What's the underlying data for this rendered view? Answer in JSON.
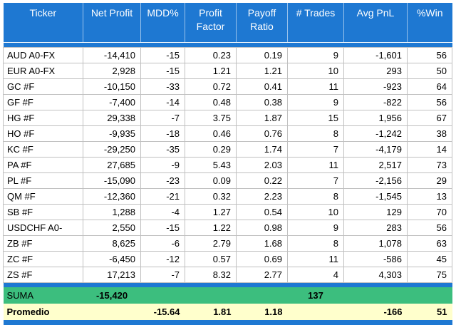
{
  "table": {
    "headers": [
      "Ticker",
      "Net Profit",
      "MDD%",
      "Profit Factor",
      "Payoff Ratio",
      "# Trades",
      "Avg PnL",
      "%Win"
    ],
    "rows": [
      [
        "AUD A0-FX",
        "-14,410",
        "-15",
        "0.23",
        "0.19",
        "9",
        "-1,601",
        "56"
      ],
      [
        "EUR A0-FX",
        "2,928",
        "-15",
        "1.21",
        "1.21",
        "10",
        "293",
        "50"
      ],
      [
        "GC #F",
        "-10,150",
        "-33",
        "0.72",
        "0.41",
        "11",
        "-923",
        "64"
      ],
      [
        "GF #F",
        "-7,400",
        "-14",
        "0.48",
        "0.38",
        "9",
        "-822",
        "56"
      ],
      [
        "HG #F",
        "29,338",
        "-7",
        "3.75",
        "1.87",
        "15",
        "1,956",
        "67"
      ],
      [
        "HO #F",
        "-9,935",
        "-18",
        "0.46",
        "0.76",
        "8",
        "-1,242",
        "38"
      ],
      [
        "KC #F",
        "-29,250",
        "-35",
        "0.29",
        "1.74",
        "7",
        "-4,179",
        "14"
      ],
      [
        "PA #F",
        "27,685",
        "-9",
        "5.43",
        "2.03",
        "11",
        "2,517",
        "73"
      ],
      [
        "PL #F",
        "-15,090",
        "-23",
        "0.09",
        "0.22",
        "7",
        "-2,156",
        "29"
      ],
      [
        "QM #F",
        "-12,360",
        "-21",
        "0.32",
        "2.23",
        "8",
        "-1,545",
        "13"
      ],
      [
        "SB #F",
        "1,288",
        "-4",
        "1.27",
        "0.54",
        "10",
        "129",
        "70"
      ],
      [
        "USDCHF A0-",
        "2,550",
        "-15",
        "1.22",
        "0.98",
        "9",
        "283",
        "56"
      ],
      [
        "ZB #F",
        "8,625",
        "-6",
        "2.79",
        "1.68",
        "8",
        "1,078",
        "63"
      ],
      [
        "ZC #F",
        "-6,450",
        "-12",
        "0.57",
        "0.69",
        "11",
        "-586",
        "45"
      ],
      [
        "ZS #F",
        "17,213",
        "-7",
        "8.32",
        "2.77",
        "4",
        "4,303",
        "75"
      ]
    ],
    "suma": {
      "label": "SUMA",
      "net_profit": "-15,420",
      "trades": "137"
    },
    "promedio": {
      "label": "Promedio",
      "mdd": "-15.64",
      "profit_factor": "1.81",
      "payoff_ratio": "1.18",
      "avg_pnl": "-166",
      "win": "51"
    }
  },
  "colors": {
    "header_blue": "#1E78D2",
    "suma_green": "#3CBE7E",
    "promedio_yellow": "#FFFFCC",
    "gridline_gray": "#C0C0C0",
    "header_text": "#FFFFFF"
  },
  "chart_data": {
    "type": "table",
    "title": "Strategy performance by ticker",
    "columns": [
      "Ticker",
      "Net Profit",
      "MDD%",
      "Profit Factor",
      "Payoff Ratio",
      "# Trades",
      "Avg PnL",
      "%Win"
    ],
    "rows": [
      [
        "AUD A0-FX",
        -14410,
        -15,
        0.23,
        0.19,
        9,
        -1601,
        56
      ],
      [
        "EUR A0-FX",
        2928,
        -15,
        1.21,
        1.21,
        10,
        293,
        50
      ],
      [
        "GC #F",
        -10150,
        -33,
        0.72,
        0.41,
        11,
        -923,
        64
      ],
      [
        "GF #F",
        -7400,
        -14,
        0.48,
        0.38,
        9,
        -822,
        56
      ],
      [
        "HG #F",
        29338,
        -7,
        3.75,
        1.87,
        15,
        1956,
        67
      ],
      [
        "HO #F",
        -9935,
        -18,
        0.46,
        0.76,
        8,
        -1242,
        38
      ],
      [
        "KC #F",
        -29250,
        -35,
        0.29,
        1.74,
        7,
        -4179,
        14
      ],
      [
        "PA #F",
        27685,
        -9,
        5.43,
        2.03,
        11,
        2517,
        73
      ],
      [
        "PL #F",
        -15090,
        -23,
        0.09,
        0.22,
        7,
        -2156,
        29
      ],
      [
        "QM #F",
        -12360,
        -21,
        0.32,
        2.23,
        8,
        -1545,
        13
      ],
      [
        "SB #F",
        1288,
        -4,
        1.27,
        0.54,
        10,
        129,
        70
      ],
      [
        "USDCHF A0-",
        2550,
        -15,
        1.22,
        0.98,
        9,
        283,
        56
      ],
      [
        "ZB #F",
        8625,
        -6,
        2.79,
        1.68,
        8,
        1078,
        63
      ],
      [
        "ZC #F",
        -6450,
        -12,
        0.57,
        0.69,
        11,
        -586,
        45
      ],
      [
        "ZS #F",
        17213,
        -7,
        8.32,
        2.77,
        4,
        4303,
        75
      ]
    ],
    "summary_rows": {
      "SUMA": {
        "net_profit": -15420,
        "trades": 137
      },
      "Promedio": {
        "mdd_pct": -15.64,
        "profit_factor": 1.81,
        "payoff_ratio": 1.18,
        "avg_pnl": -166,
        "win_pct": 51
      }
    }
  }
}
